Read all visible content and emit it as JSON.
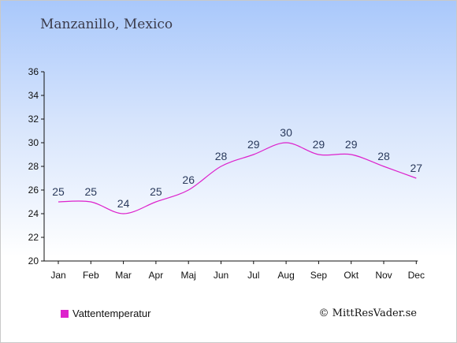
{
  "header": {
    "title": "Manzanillo, Mexico"
  },
  "footer": {
    "credit": "© MittResVader.se"
  },
  "chart_data": {
    "type": "line",
    "title": "Manzanillo, Mexico",
    "xlabel": "",
    "ylabel": "",
    "categories": [
      "Jan",
      "Feb",
      "Mar",
      "Apr",
      "Maj",
      "Jun",
      "Jul",
      "Aug",
      "Sep",
      "Okt",
      "Nov",
      "Dec"
    ],
    "series": [
      {
        "name": "Vattentemperatur",
        "values": [
          25,
          25,
          24,
          25,
          26,
          28,
          29,
          30,
          29,
          29,
          28,
          27
        ],
        "color": "#dd22cc"
      }
    ],
    "ylim": [
      20,
      36
    ],
    "yticks": [
      20,
      22,
      24,
      26,
      28,
      30,
      32,
      34,
      36
    ],
    "grid": false,
    "legend_position": "bottom-left"
  }
}
